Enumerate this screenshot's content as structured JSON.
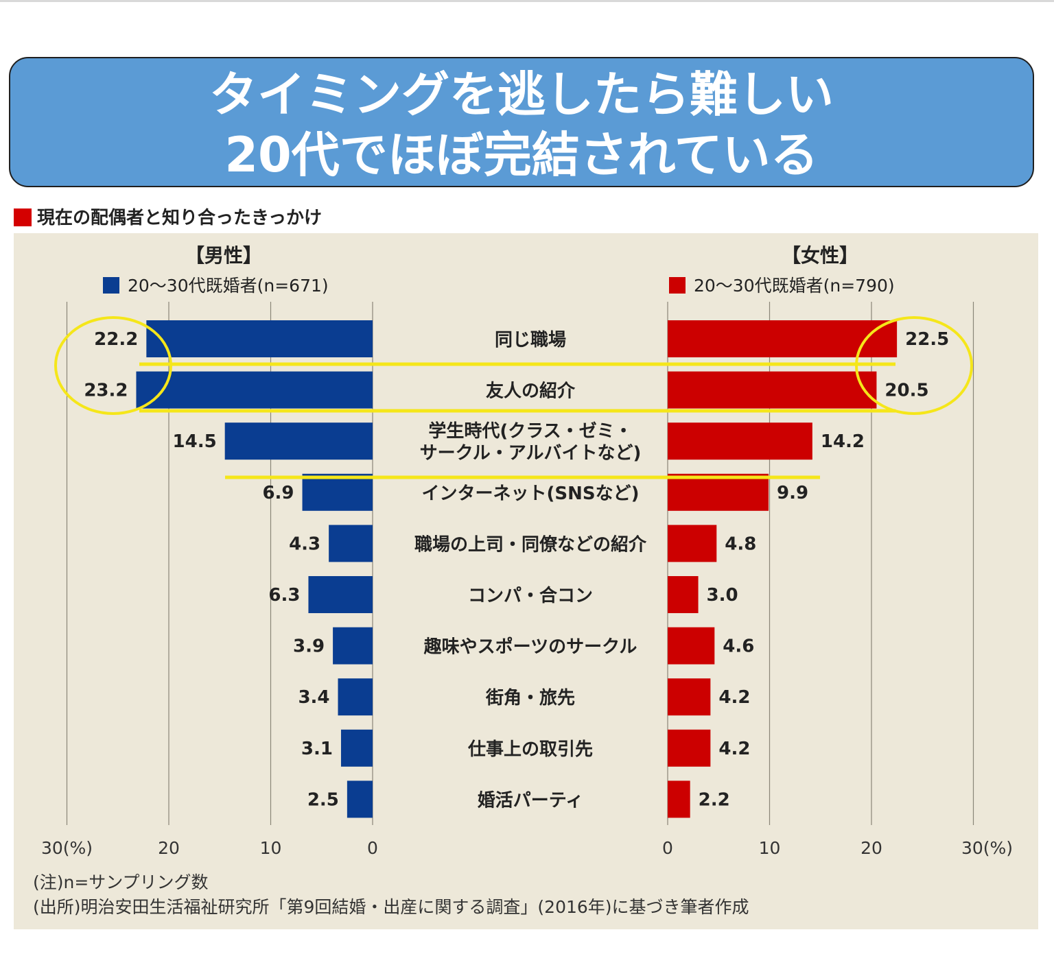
{
  "banner": {
    "line1": "タイミングを逃したら難しい",
    "line2": "20代でほぼ完結されている"
  },
  "chart_title": "現在の配偶者と知り合ったきっかけ",
  "colors": {
    "male": "#0a3d91",
    "female": "#cc0000",
    "highlight": "#f5e61a",
    "banner": "#5b9bd5",
    "panel": "#ede8d9"
  },
  "chart_data": {
    "type": "bar",
    "orientation": "horizontal-back-to-back",
    "title": "現在の配偶者と知り合ったきっかけ",
    "unit": "%",
    "groups": {
      "male": "【男性】",
      "female": "【女性】"
    },
    "categories": [
      [
        "同じ職場"
      ],
      [
        "友人の紹介"
      ],
      [
        "学生時代(クラス・ゼミ・",
        "サークル・アルバイトなど)"
      ],
      [
        "インターネット(SNSなど)"
      ],
      [
        "職場の上司・同僚などの紹介"
      ],
      [
        "コンパ・合コン"
      ],
      [
        "趣味やスポーツのサークル"
      ],
      [
        "街角・旅先"
      ],
      [
        "仕事上の取引先"
      ],
      [
        "婚活パーティ"
      ]
    ],
    "series": [
      {
        "name": "20〜30代既婚者(n=671)",
        "group": "male",
        "values": [
          22.2,
          23.2,
          14.5,
          6.9,
          4.3,
          6.3,
          3.9,
          3.4,
          3.1,
          2.5
        ],
        "labels": [
          "22.2",
          "23.2",
          "14.5",
          "6.9",
          "4.3",
          "6.3",
          "3.9",
          "3.4",
          "3.1",
          "2.5"
        ]
      },
      {
        "name": "20〜30代既婚者(n=790)",
        "group": "female",
        "values": [
          22.5,
          20.5,
          14.2,
          9.9,
          4.8,
          3.0,
          4.6,
          4.2,
          4.2,
          2.2
        ],
        "labels": [
          "22.5",
          "20.5",
          "14.2",
          "9.9",
          "4.8",
          "3.0",
          "4.6",
          "4.2",
          "4.2",
          "2.2"
        ]
      }
    ],
    "xlim": [
      0,
      30
    ],
    "ticks_left": [
      "30(%)",
      "20",
      "10",
      "0"
    ],
    "ticks_right": [
      "0",
      "10",
      "20",
      "30(%)"
    ],
    "grid": true,
    "notes": [
      "(注)n=サンプリング数",
      "(出所)明治安田生活福祉研究所「第9回結婚・出産に関する調査」(2016年)に基づき筆者作成"
    ]
  }
}
